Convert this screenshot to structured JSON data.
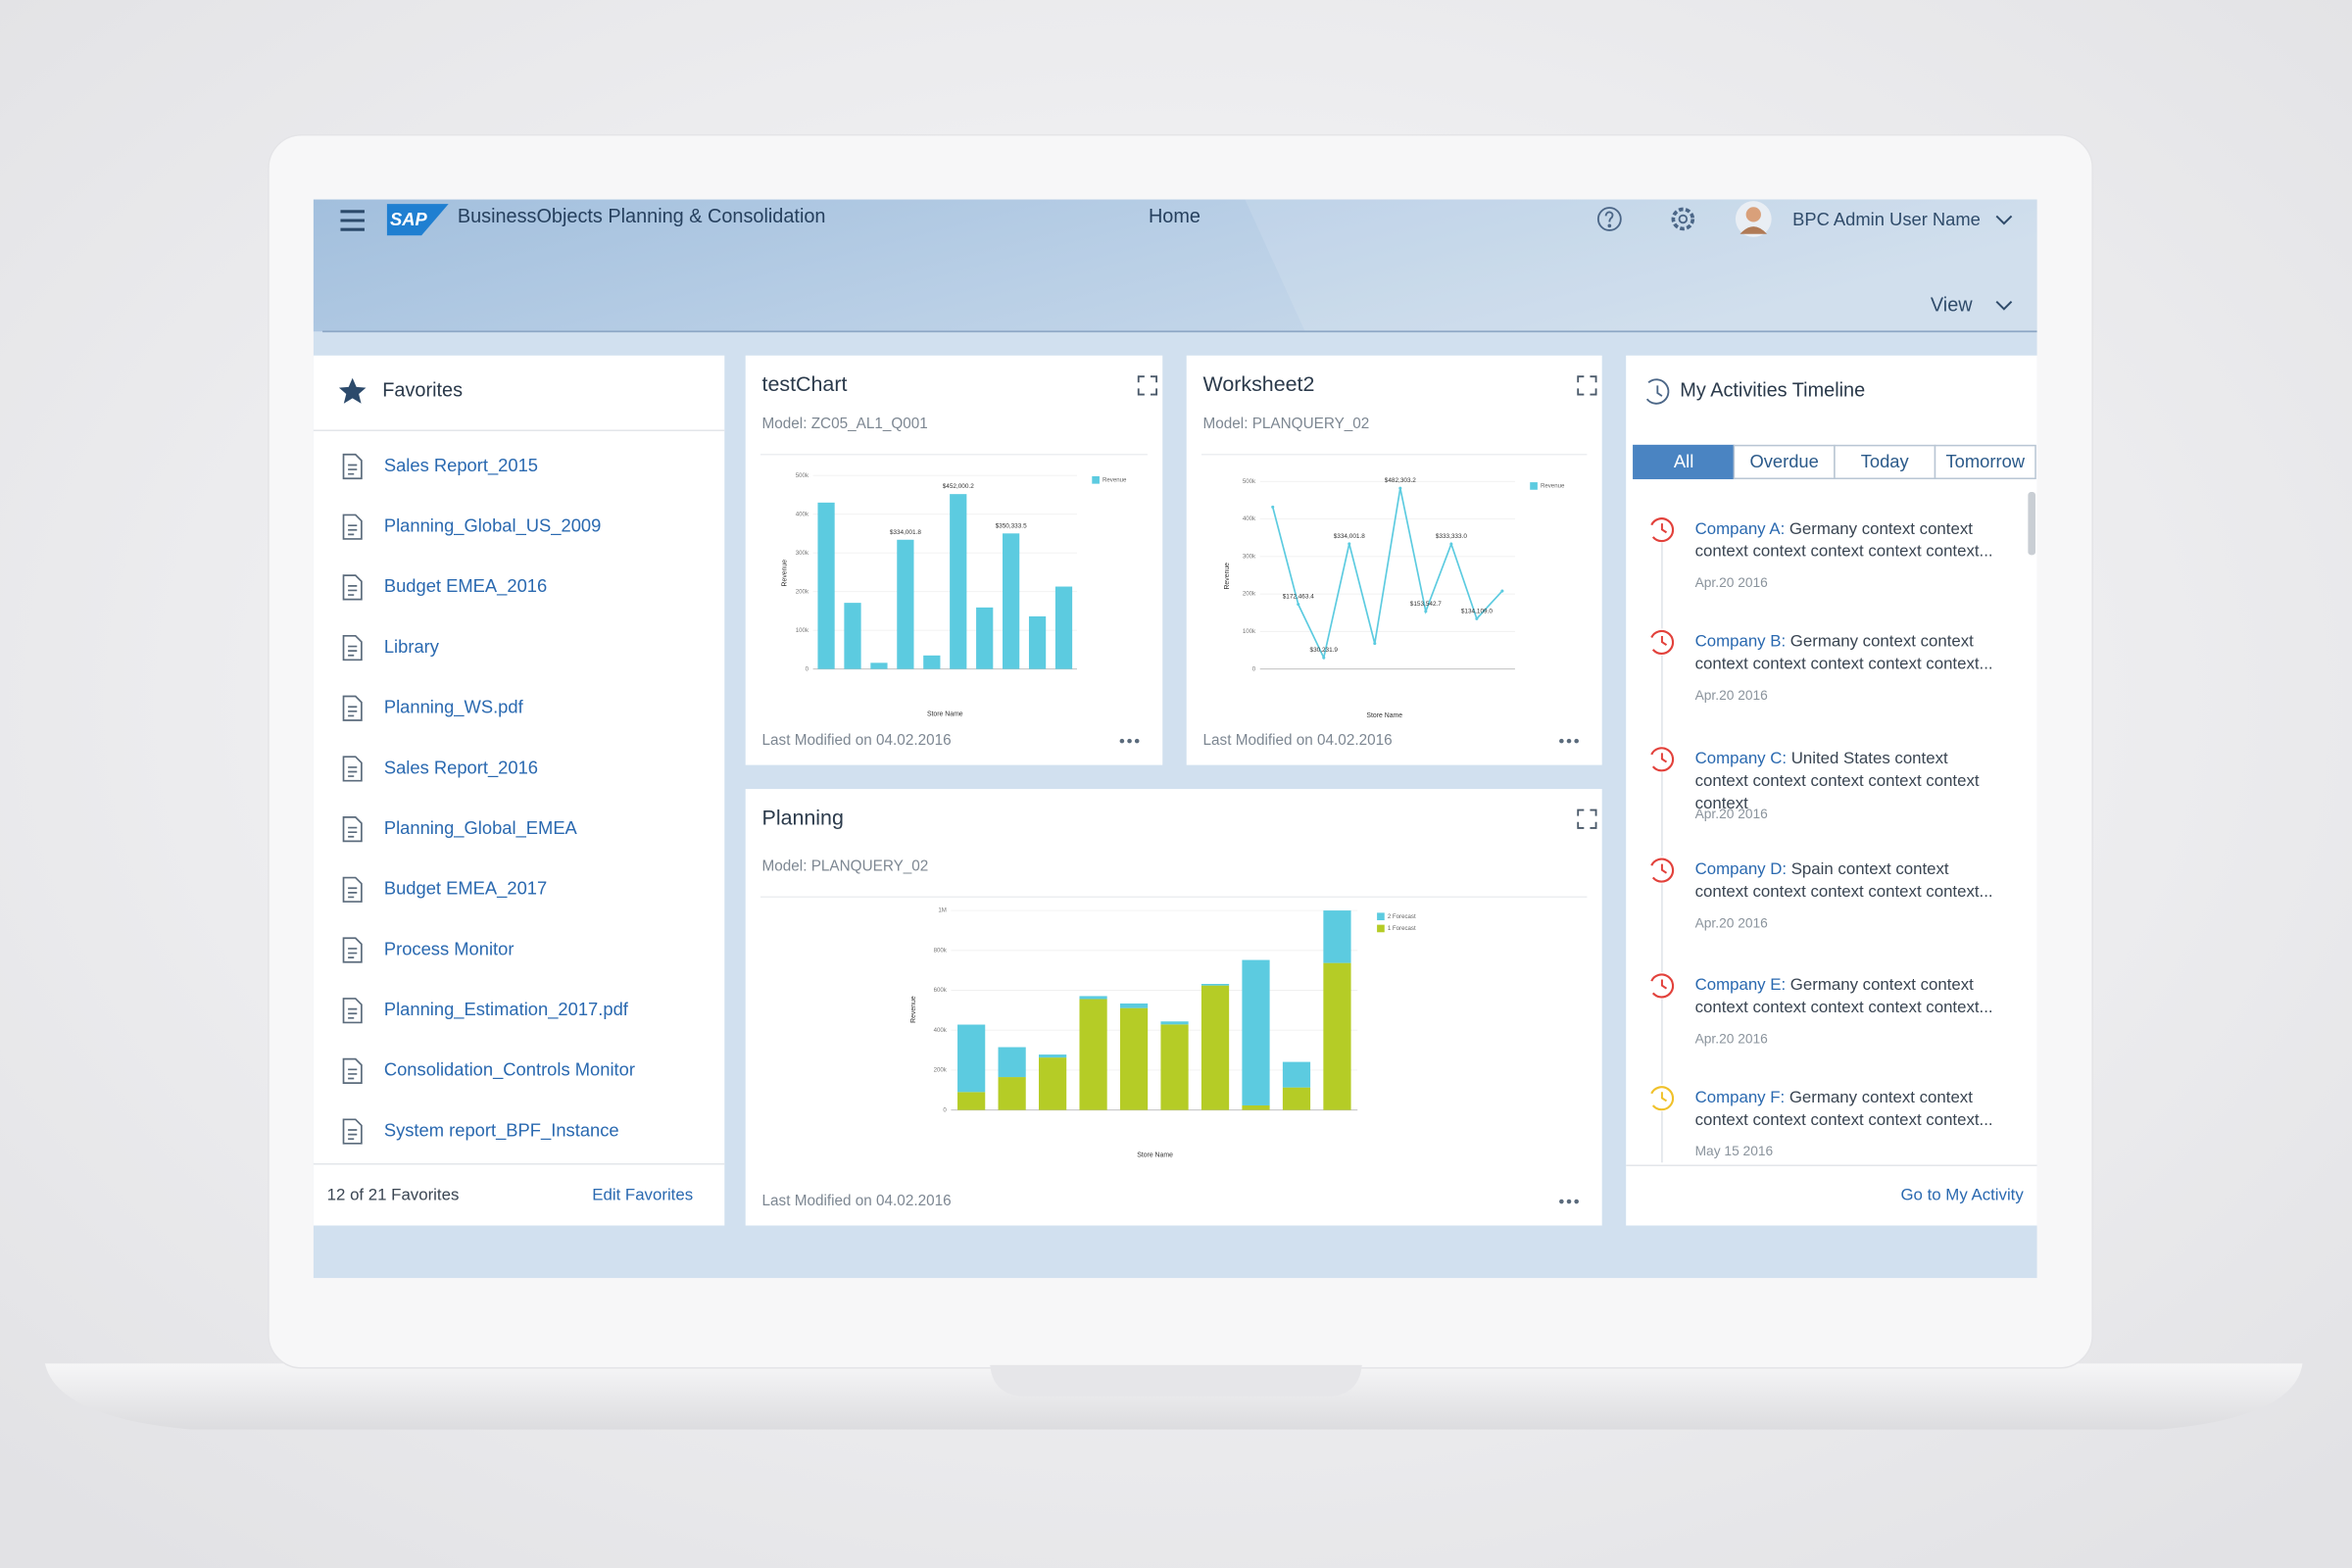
{
  "header": {
    "logo": "SAP",
    "app_title": "BusinessObjects Planning & Consolidation",
    "page": "Home",
    "user": "BPC Admin User Name",
    "view": "View"
  },
  "favorites": {
    "title": "Favorites",
    "items": [
      "Sales Report_2015",
      "Planning_Global_US_2009",
      "Budget EMEA_2016",
      "Library",
      "Planning_WS.pdf",
      "Sales Report_2016",
      "Planning_Global_EMEA",
      "Budget EMEA_2017",
      "Process Monitor",
      "Planning_Estimation_2017.pdf",
      "Consolidation_Controls Monitor",
      "System report_BPF_Instance"
    ],
    "count": "12 of 21 Favorites",
    "edit": "Edit Favorites"
  },
  "cards": [
    {
      "title": "testChart",
      "model": "Model: ZC05_AL1_Q001",
      "modified": "Last Modified on 04.02.2016",
      "chart": {
        "type": "bar",
        "y_label": "Revenue",
        "x_label": "Store Name",
        "categories": [
          null,
          null,
          null,
          null,
          null,
          null,
          null,
          null,
          null,
          null
        ],
        "series": [
          {
            "name": "Revenue",
            "color": "#5ccbe0",
            "values": [
              430000,
              171000,
              16000,
              334001.8,
              35000,
              452000.2,
              159000,
              350333.5,
              136000,
              213000
            ],
            "value_labels": [
              null,
              null,
              null,
              "$334,001.8",
              null,
              "$452,000.2",
              null,
              "$350,333.5",
              null,
              null
            ]
          }
        ],
        "ylim": [
          0,
          500000
        ],
        "yticks": [
          0,
          {
            "value": 100000,
            "label": "100k"
          },
          {
            "value": 200000,
            "label": "200k"
          },
          {
            "value": 300000,
            "label": "300k"
          },
          {
            "value": 400000,
            "label": "400k"
          },
          {
            "value": 500000,
            "label": "500k"
          }
        ]
      }
    },
    {
      "title": "Worksheet2",
      "model": "Model: PLANQUERY_02",
      "modified": "Last Modified on 04.02.2016",
      "chart": {
        "type": "line",
        "y_label": "Revenue",
        "x_label": "Store Name",
        "categories": [
          null,
          null,
          null,
          null,
          null,
          null,
          null,
          null,
          null,
          null
        ],
        "series": [
          {
            "name": "Revenue",
            "color": "#5ccbe0",
            "values": [
              432000,
              172463.4,
              30231.9,
              334001.8,
              68000,
              482303.2,
              153542.7,
              333333.0,
              134109.0,
              208000
            ],
            "value_labels": [
              null,
              "$172,463.4",
              "$30,231.9",
              "$334,001.8",
              null,
              "$482,303.2",
              "$153,542.7",
              "$333,333.0",
              "$134,109.0",
              null
            ]
          }
        ],
        "ylim": [
          0,
          500000
        ],
        "yticks": [
          0,
          {
            "value": 100000,
            "label": "100k"
          },
          {
            "value": 200000,
            "label": "200k"
          },
          {
            "value": 300000,
            "label": "300k"
          },
          {
            "value": 400000,
            "label": "400k"
          },
          {
            "value": 500000,
            "label": "500k"
          }
        ]
      }
    },
    {
      "title": "Planning",
      "model": "Model: PLANQUERY_02",
      "modified": "Last Modified on 04.02.2016",
      "chart": {
        "type": "stacked_bar",
        "y_label": "Revenue",
        "x_label": "Store Name",
        "categories": [
          null,
          null,
          null,
          null,
          null,
          null,
          null,
          null,
          null,
          null
        ],
        "series": [
          {
            "name": "1 Forecast",
            "color": "#b5cc26",
            "values": [
              90000,
              165000,
              263000,
              556000,
              511000,
              429000,
              624000,
              23000,
              113000,
              737000
            ]
          },
          {
            "name": "2 Forecast",
            "color": "#5ccbe0",
            "values": [
              338000,
              150000,
              15000,
              15000,
              23000,
              15000,
              8000,
              729000,
              128000,
              263000
            ]
          }
        ],
        "ylim": [
          0,
          1000000
        ],
        "yticks": [
          0,
          {
            "value": 200000,
            "label": "200k"
          },
          {
            "value": 400000,
            "label": "400k"
          },
          {
            "value": 600000,
            "label": "600k"
          },
          {
            "value": 800000,
            "label": "800k"
          },
          {
            "value": 1000000,
            "label": "1M"
          }
        ]
      }
    }
  ],
  "activities": {
    "title": "My Activities Timeline",
    "tabs": [
      "All",
      "Overdue",
      "Today",
      "Tomorrow"
    ],
    "items": [
      {
        "company": "Company A:",
        "detail": [
          "Germany context context",
          "context context context context context..."
        ],
        "date": "Apr.20 2016",
        "icon_color": "#e2413b"
      },
      {
        "company": "Company B:",
        "detail": [
          "Germany context context",
          "context context context context context..."
        ],
        "date": "Apr.20 2016",
        "icon_color": "#e2413b"
      },
      {
        "company": "Company C:",
        "detail": [
          "United States context",
          "context context context context context",
          "context"
        ],
        "date": "Apr.20 2016",
        "icon_color": "#e2413b"
      },
      {
        "company": "Company D:",
        "detail": [
          "Spain context context",
          "context context context context context..."
        ],
        "date": "Apr.20 2016",
        "icon_color": "#e2413b"
      },
      {
        "company": "Company E:",
        "detail": [
          "Germany context context",
          "context context context context context..."
        ],
        "date": "Apr.20 2016",
        "icon_color": "#e2413b"
      },
      {
        "company": "Company F:",
        "detail": [
          "Germany context context",
          "context context context context context..."
        ],
        "date": "May 15 2016",
        "icon_color": "#f0c12a"
      }
    ],
    "link": "Go to My Activity"
  }
}
